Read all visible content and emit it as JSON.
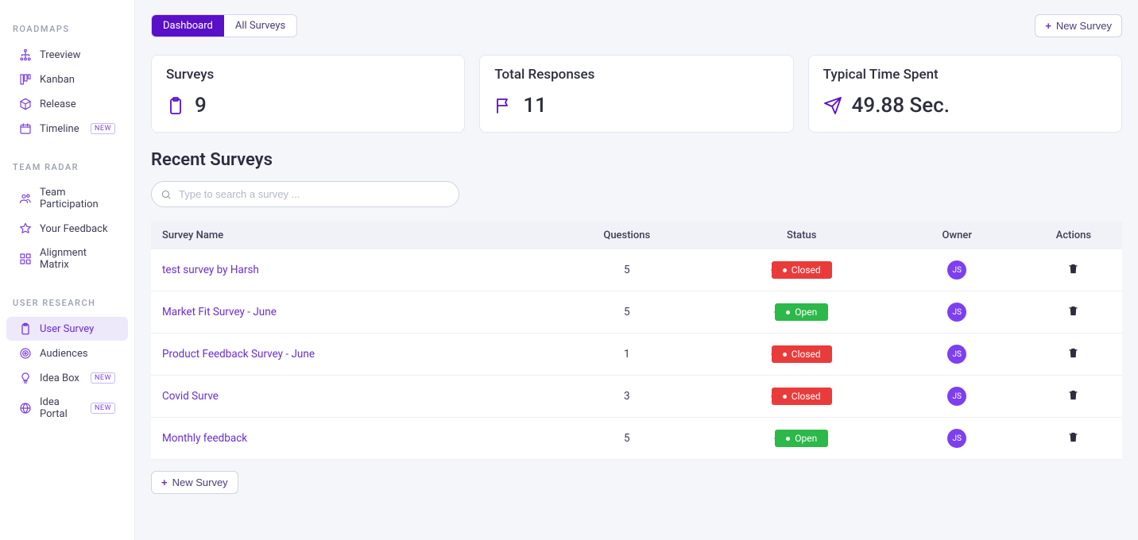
{
  "colors": {
    "brand": "#5a0fc8",
    "accent": "#6a2ecf",
    "bg": "#f5f6fa",
    "card_border": "#e4e7f1",
    "text": "#2d2d3f",
    "muted": "#9aa0b0",
    "open": "#2db84a",
    "closed": "#ea3b3b",
    "avatar_bg": "#7d3ff0"
  },
  "sidebar": {
    "sections": [
      {
        "title": "ROADMAPS",
        "items": [
          {
            "label": "Treeview",
            "icon": "tree",
            "new": false,
            "active": false
          },
          {
            "label": "Kanban",
            "icon": "kanban",
            "new": false,
            "active": false
          },
          {
            "label": "Release",
            "icon": "package",
            "new": false,
            "active": false
          },
          {
            "label": "Timeline",
            "icon": "calendar",
            "new": true,
            "active": false
          }
        ]
      },
      {
        "title": "TEAM RADAR",
        "items": [
          {
            "label": "Team Participation",
            "icon": "users",
            "new": false,
            "active": false
          },
          {
            "label": "Your Feedback",
            "icon": "star",
            "new": false,
            "active": false
          },
          {
            "label": "Alignment Matrix",
            "icon": "grid",
            "new": false,
            "active": false
          }
        ]
      },
      {
        "title": "USER RESEARCH",
        "items": [
          {
            "label": "User Survey",
            "icon": "clipboard",
            "new": false,
            "active": true
          },
          {
            "label": "Audiences",
            "icon": "target",
            "new": false,
            "active": false
          },
          {
            "label": "Idea Box",
            "icon": "bulb",
            "new": true,
            "active": false
          },
          {
            "label": "Idea Portal",
            "icon": "globe",
            "new": true,
            "active": false
          }
        ]
      }
    ],
    "new_badge_text": "NEW"
  },
  "toolbar": {
    "tabs": [
      {
        "label": "Dashboard",
        "active": true
      },
      {
        "label": "All Surveys",
        "active": false
      }
    ],
    "new_survey_label": "New Survey"
  },
  "stats": [
    {
      "title": "Surveys",
      "value": "9",
      "icon": "clipboard"
    },
    {
      "title": "Total Responses",
      "value": "11",
      "icon": "flag"
    },
    {
      "title": "Typical Time Spent",
      "value": "49.88 Sec.",
      "icon": "send"
    }
  ],
  "recent": {
    "title": "Recent Surveys",
    "search_placeholder": "Type to search a survey ...",
    "columns": [
      "Survey Name",
      "Questions",
      "Status",
      "Owner",
      "Actions"
    ],
    "rows": [
      {
        "name": "test survey by Harsh",
        "questions": "5",
        "status": "Closed",
        "status_class": "closed",
        "owner": "JS"
      },
      {
        "name": "Market Fit Survey - June",
        "questions": "5",
        "status": "Open",
        "status_class": "open",
        "owner": "JS"
      },
      {
        "name": "Product Feedback Survey - June",
        "questions": "1",
        "status": "Closed",
        "status_class": "closed",
        "owner": "JS"
      },
      {
        "name": "Covid Surve",
        "questions": "3",
        "status": "Closed",
        "status_class": "closed",
        "owner": "JS"
      },
      {
        "name": "Monthly feedback",
        "questions": "5",
        "status": "Open",
        "status_class": "open",
        "owner": "JS"
      }
    ],
    "new_survey_bottom_label": "New Survey"
  }
}
